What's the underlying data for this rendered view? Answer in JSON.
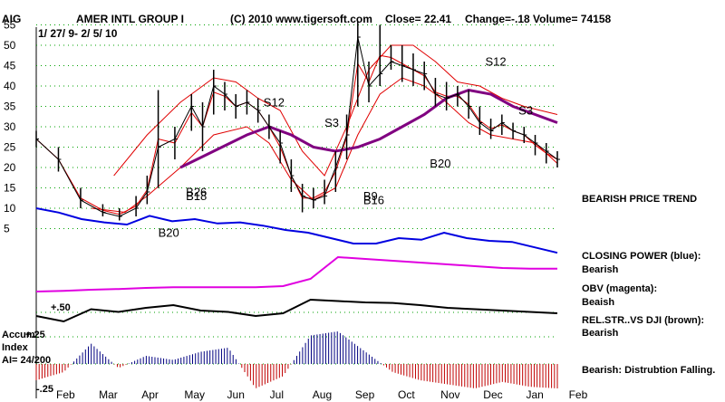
{
  "header": {
    "ticker": "AIG",
    "company": "AMER INTL GROUP I",
    "copyright": "(C) 2010 www.tigersoft.com",
    "close": "Close=  22.41",
    "change": "Change=-.18",
    "volume": "Volume= 74158",
    "date_range": "1/ 27/ 9- 2/ 5/ 10"
  },
  "right_panel": {
    "trend": "BEARISH PRICE TREND",
    "closing_power_title": "CLOSING POWER (blue):",
    "closing_power_value": "Bearish",
    "obv_title": "OBV (magenta):",
    "obv_value": "Beaish",
    "relstr_title": "REL.STR..VS DJI (brown):",
    "relstr_value": "Bearish",
    "accum_comment": "Bearish: Distrubtion Falling."
  },
  "left_panel": {
    "accum_line1": "Accum",
    "accum_line2": "Index",
    "accum_line3": "AI= 24/200",
    "level_50": "+.50",
    "level_25": "+.25",
    "level_neg25": "-.25"
  },
  "colors": {
    "price_bars": "#000000",
    "bands": "#e00000",
    "moving_avg": "#800080",
    "closing_power": "#0000e0",
    "obv": "#e000e0",
    "rel_strength": "#000000",
    "accum_pos": "#000080",
    "accum_neg": "#c00000",
    "gridline": "#00a000"
  },
  "chart_data": {
    "type": "line",
    "title": "AMER INTL GROUP I",
    "y_axis_ticks": [
      55,
      50,
      45,
      40,
      35,
      30,
      25,
      20,
      15,
      10,
      5
    ],
    "ylim": [
      0,
      58
    ],
    "x_axis_months": [
      "Feb",
      "Mar",
      "Apr",
      "May",
      "Jun",
      "Jul",
      "Aug",
      "Sep",
      "Oct",
      "Nov",
      "Dec",
      "Jan",
      "Feb"
    ],
    "price_close": [
      {
        "x": 0,
        "y": 27
      },
      {
        "x": 4,
        "y": 22
      },
      {
        "x": 8,
        "y": 12
      },
      {
        "x": 12,
        "y": 9
      },
      {
        "x": 15,
        "y": 8
      },
      {
        "x": 18,
        "y": 10
      },
      {
        "x": 20,
        "y": 14
      },
      {
        "x": 22,
        "y": 25
      },
      {
        "x": 25,
        "y": 27
      },
      {
        "x": 28,
        "y": 35
      },
      {
        "x": 30,
        "y": 30
      },
      {
        "x": 32,
        "y": 40
      },
      {
        "x": 34,
        "y": 38
      },
      {
        "x": 36,
        "y": 35
      },
      {
        "x": 38,
        "y": 36
      },
      {
        "x": 40,
        "y": 34
      },
      {
        "x": 42,
        "y": 30
      },
      {
        "x": 44,
        "y": 26
      },
      {
        "x": 46,
        "y": 18
      },
      {
        "x": 48,
        "y": 13
      },
      {
        "x": 50,
        "y": 12
      },
      {
        "x": 52,
        "y": 13
      },
      {
        "x": 54,
        "y": 20
      },
      {
        "x": 56,
        "y": 28
      },
      {
        "x": 58,
        "y": 52
      },
      {
        "x": 60,
        "y": 40
      },
      {
        "x": 62,
        "y": 43
      },
      {
        "x": 64,
        "y": 46
      },
      {
        "x": 66,
        "y": 45
      },
      {
        "x": 68,
        "y": 44
      },
      {
        "x": 70,
        "y": 43
      },
      {
        "x": 72,
        "y": 38
      },
      {
        "x": 74,
        "y": 37
      },
      {
        "x": 76,
        "y": 38
      },
      {
        "x": 78,
        "y": 35
      },
      {
        "x": 80,
        "y": 31
      },
      {
        "x": 82,
        "y": 29
      },
      {
        "x": 84,
        "y": 31
      },
      {
        "x": 86,
        "y": 29
      },
      {
        "x": 88,
        "y": 28
      },
      {
        "x": 90,
        "y": 26
      },
      {
        "x": 92,
        "y": 24
      },
      {
        "x": 94,
        "y": 22
      }
    ],
    "price_high": [
      29,
      25,
      15,
      11,
      10,
      13,
      18,
      39,
      30,
      38,
      36,
      44,
      41,
      38,
      39,
      37,
      33,
      29,
      22,
      16,
      15,
      17,
      24,
      33,
      56,
      46,
      55,
      50,
      50,
      48,
      46,
      42,
      41,
      40,
      39,
      35,
      32,
      33,
      31,
      30,
      28,
      26,
      24
    ],
    "price_low": [
      25,
      19,
      10,
      8,
      7,
      8,
      11,
      15,
      22,
      29,
      24,
      33,
      34,
      32,
      33,
      31,
      27,
      21,
      14,
      9,
      10,
      11,
      14,
      22,
      35,
      36,
      40,
      44,
      41,
      40,
      39,
      35,
      34,
      35,
      32,
      28,
      27,
      28,
      27,
      26,
      23,
      21,
      20
    ],
    "moving_avg": [
      {
        "x": 0,
        "y": null
      },
      {
        "x": 26,
        "y": 20
      },
      {
        "x": 32,
        "y": 24
      },
      {
        "x": 38,
        "y": 28
      },
      {
        "x": 42,
        "y": 30
      },
      {
        "x": 46,
        "y": 28
      },
      {
        "x": 50,
        "y": 25
      },
      {
        "x": 54,
        "y": 24
      },
      {
        "x": 58,
        "y": 25
      },
      {
        "x": 62,
        "y": 27
      },
      {
        "x": 66,
        "y": 30
      },
      {
        "x": 70,
        "y": 33
      },
      {
        "x": 74,
        "y": 37
      },
      {
        "x": 78,
        "y": 39
      },
      {
        "x": 82,
        "y": 38
      },
      {
        "x": 86,
        "y": 35
      },
      {
        "x": 90,
        "y": 33
      },
      {
        "x": 94,
        "y": 31
      }
    ],
    "upper_band": [
      {
        "x": 14,
        "y": 18
      },
      {
        "x": 20,
        "y": 28
      },
      {
        "x": 26,
        "y": 36
      },
      {
        "x": 32,
        "y": 42
      },
      {
        "x": 36,
        "y": 41
      },
      {
        "x": 40,
        "y": 37
      },
      {
        "x": 44,
        "y": 34
      },
      {
        "x": 48,
        "y": 24
      },
      {
        "x": 52,
        "y": 18
      },
      {
        "x": 56,
        "y": 30
      },
      {
        "x": 60,
        "y": 44
      },
      {
        "x": 64,
        "y": 50
      },
      {
        "x": 68,
        "y": 50
      },
      {
        "x": 72,
        "y": 46
      },
      {
        "x": 76,
        "y": 41
      },
      {
        "x": 80,
        "y": 40
      },
      {
        "x": 84,
        "y": 37
      },
      {
        "x": 88,
        "y": 35
      },
      {
        "x": 94,
        "y": 33
      }
    ],
    "lower_band": [
      {
        "x": 10,
        "y": 10
      },
      {
        "x": 16,
        "y": 9
      },
      {
        "x": 20,
        "y": 13
      },
      {
        "x": 26,
        "y": 20
      },
      {
        "x": 32,
        "y": 28
      },
      {
        "x": 38,
        "y": 30
      },
      {
        "x": 42,
        "y": 26
      },
      {
        "x": 46,
        "y": 17
      },
      {
        "x": 50,
        "y": 12
      },
      {
        "x": 54,
        "y": 15
      },
      {
        "x": 58,
        "y": 28
      },
      {
        "x": 62,
        "y": 38
      },
      {
        "x": 66,
        "y": 42
      },
      {
        "x": 70,
        "y": 40
      },
      {
        "x": 74,
        "y": 36
      },
      {
        "x": 78,
        "y": 31
      },
      {
        "x": 82,
        "y": 28
      },
      {
        "x": 86,
        "y": 27
      },
      {
        "x": 90,
        "y": 26
      },
      {
        "x": 94,
        "y": 21
      }
    ],
    "closing_power": [
      0.5,
      0.42,
      0.3,
      0.24,
      0.2,
      0.36,
      0.26,
      0.3,
      0.22,
      0.24,
      0.18,
      0.1,
      0.05,
      -0.05,
      -0.15,
      -0.15,
      -0.05,
      -0.08,
      0.05,
      -0.05,
      -0.1,
      -0.12,
      -0.22,
      -0.32
    ],
    "obv": [
      0.05,
      0.07,
      0.1,
      0.12,
      0.15,
      0.17,
      0.17,
      0.17,
      0.17,
      0.2,
      0.4,
      1.0,
      0.95,
      0.9,
      0.85,
      0.8,
      0.75,
      0.7,
      0.68,
      0.68
    ],
    "rel_strength": [
      0.3,
      0.1,
      0.55,
      0.45,
      0.6,
      0.7,
      0.5,
      0.45,
      0.3,
      0.4,
      0.9,
      0.85,
      0.8,
      0.78,
      0.7,
      0.6,
      0.55,
      0.5,
      0.45,
      0.4
    ],
    "accum_index": [
      -0.2,
      -0.1,
      0.25,
      -0.05,
      0.1,
      0.05,
      0.15,
      0.2,
      -0.3,
      -0.15,
      0.35,
      0.4,
      0.15,
      -0.1,
      -0.2,
      -0.25,
      -0.3,
      -0.22,
      -0.28,
      -0.3
    ],
    "annotations": [
      {
        "label": "S12",
        "x": 41,
        "y": 35,
        "color": "#000000"
      },
      {
        "label": "S3",
        "x": 52,
        "y": 30,
        "color": "#000000"
      },
      {
        "label": "S12",
        "x": 81,
        "y": 45,
        "color": "#000000"
      },
      {
        "label": "S3",
        "x": 87,
        "y": 33,
        "color": "#000000"
      },
      {
        "label": "B20",
        "x": 22,
        "y": 3,
        "color": "#000000"
      },
      {
        "label": "B20",
        "x": 71,
        "y": 20,
        "color": "#000000"
      },
      {
        "label": "B26",
        "x": 27,
        "y": 13,
        "color": "#000000"
      },
      {
        "label": "B18",
        "x": 27,
        "y": 12,
        "color": "#000000"
      },
      {
        "label": "B9",
        "x": 59,
        "y": 12,
        "color": "#000000"
      },
      {
        "label": "B16",
        "x": 59,
        "y": 11,
        "color": "#000000"
      }
    ]
  }
}
